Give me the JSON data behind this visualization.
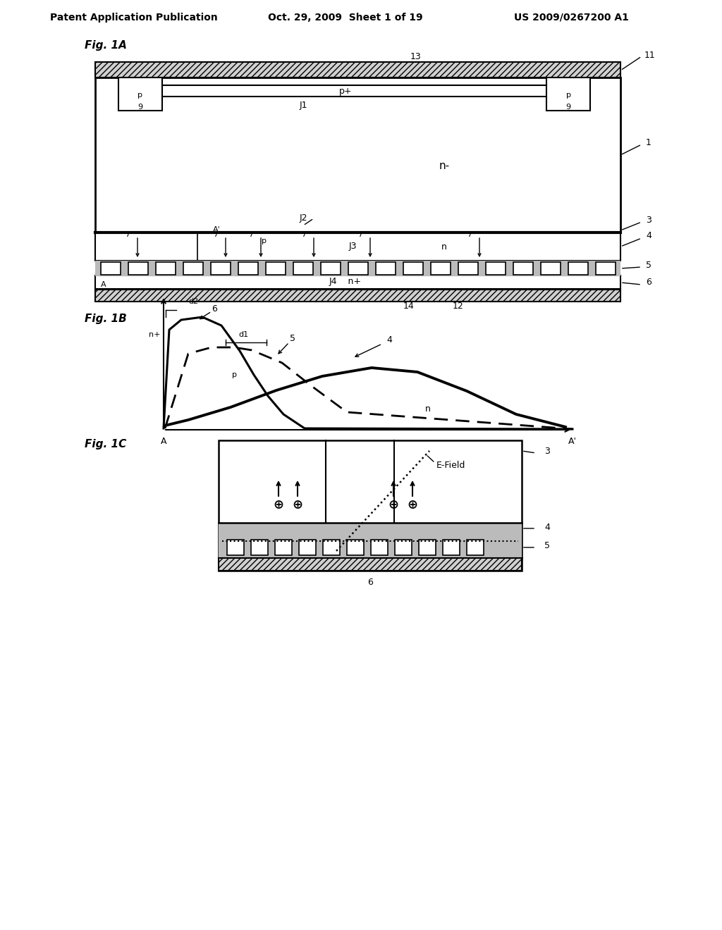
{
  "bg_color": "#ffffff",
  "header_left": "Patent Application Publication",
  "header_mid": "Oct. 29, 2009  Sheet 1 of 19",
  "header_right": "US 2009/0267200 A1",
  "fig1a_label": "Fig. 1A",
  "fig1b_label": "Fig. 1B",
  "fig1c_label": "Fig. 1C"
}
